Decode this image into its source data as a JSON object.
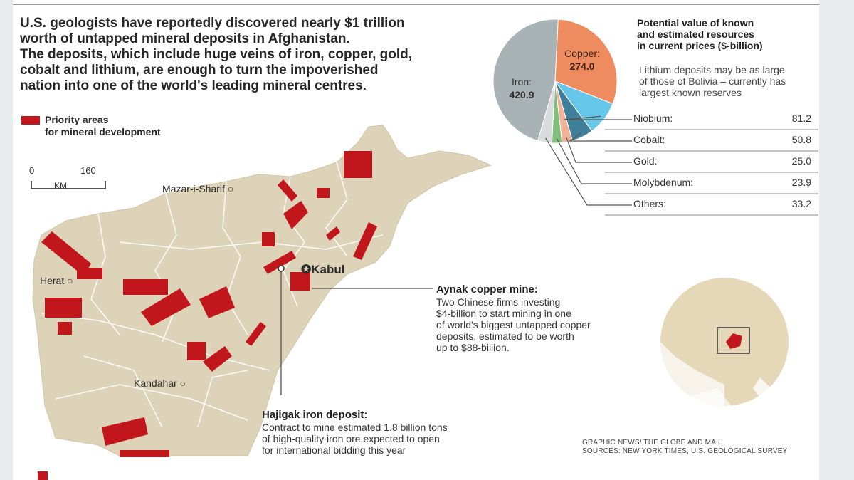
{
  "headline": [
    "U.S. geologists have reportedly discovered nearly $1 trillion",
    "worth of untapped mineral deposits in Afghanistan.",
    "The deposits, which include huge veins of iron, copper, gold,",
    "cobalt and lithium, are enough to turn the impoverished",
    "nation into one of the world's leading mineral centres."
  ],
  "legend": {
    "label_line1": "Priority areas",
    "label_line2": "for mineral development",
    "color": "#c1161c"
  },
  "scale": {
    "zero": "0",
    "max": "160",
    "unit": "KM"
  },
  "cities": {
    "mazar": "Mazar-i-Sharif",
    "kabul": "Kabul",
    "herat": "Herat",
    "kandahar": "Kandahar"
  },
  "pie_title": [
    "Potential value of known",
    "and estimated resources",
    "in current prices ($-billion)"
  ],
  "pie_note": [
    "Lithium deposits may be as large",
    "of those of Bolivia – currently has",
    "largest known reserves"
  ],
  "chart_data": {
    "type": "pie",
    "title": "Potential value of known and estimated resources in current prices ($-billion)",
    "slices": [
      {
        "name": "Iron",
        "label": "Iron:",
        "value": 420.9,
        "display": "420.9",
        "color": "#a9b2b5"
      },
      {
        "name": "Copper",
        "label": "Copper:",
        "value": 274.0,
        "display": "274.0",
        "color": "#ef8c5f"
      },
      {
        "name": "Niobium",
        "label": "Niobium:",
        "value": 81.2,
        "display": "81.2",
        "color": "#66c7ea"
      },
      {
        "name": "Cobalt",
        "label": "Cobalt:",
        "value": 50.8,
        "display": "50.8",
        "color": "#3f7f97"
      },
      {
        "name": "Gold",
        "label": "Gold:",
        "value": 25.0,
        "display": "25.0",
        "color": "#f2b29a"
      },
      {
        "name": "Molybdenum",
        "label": "Molybdenum:",
        "value": 23.9,
        "display": "23.9",
        "color": "#7fbf7b"
      },
      {
        "name": "Others",
        "label": "Others:",
        "value": 33.2,
        "display": "33.2",
        "color": "#d9dcdc"
      }
    ]
  },
  "annotations": {
    "aynak": {
      "title": "Aynak copper mine:",
      "lines": [
        "Two Chinese firms investing",
        "$4-billion to start mining in one",
        "of world's biggest untapped copper",
        "deposits, estimated to be worth",
        "up to $88-billion."
      ]
    },
    "hajigak": {
      "title": "Hajigak iron deposit:",
      "lines": [
        "Contract to mine estimated 1.8 billion tons",
        "of high-quality iron ore expected to open",
        "for international bidding this year"
      ]
    }
  },
  "credit": [
    "GRAPHIC NEWS/ THE GLOBE AND MAIL",
    "SOURCES: NEW YORK TIMES, U.S. GEOLOGICAL SURVEY"
  ],
  "colors": {
    "deposit_red": "#c1161c",
    "land_tan": "#ddd3b8",
    "globe_tan": "#e4d8b8"
  }
}
